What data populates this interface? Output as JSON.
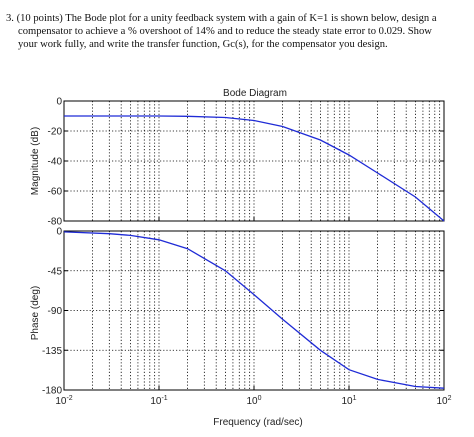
{
  "question": {
    "line1": "3. (10 points) The Bode plot for a unity feedback system with a gain of K=1 is shown below, design a",
    "line2": "compensator to achieve a % overshoot of 14% and to reduce the steady state error to 0.029.  Show",
    "line3": "your work fully, and write the transfer function, Gc(s), for the compensator you design."
  },
  "chart_data": [
    {
      "type": "line",
      "title": "Bode Diagram",
      "ylabel": "Magnitude (dB)",
      "xlabel": "",
      "xscale": "log",
      "xlim": [
        0.01,
        100
      ],
      "ylim": [
        -80,
        0
      ],
      "yticks": [
        0,
        -20,
        -40,
        -60,
        -80
      ],
      "grid": true,
      "series": [
        {
          "x": [
            0.01,
            0.05,
            0.1,
            0.2,
            0.5,
            1,
            2,
            5,
            10,
            20,
            50,
            100
          ],
          "y": [
            -10,
            -10,
            -10,
            -10.2,
            -11,
            -13,
            -17,
            -26,
            -36,
            -48,
            -64,
            -80
          ]
        }
      ]
    },
    {
      "type": "line",
      "title": "",
      "ylabel": "Phase (deg)",
      "xlabel": "Frequency  (rad/sec)",
      "xscale": "log",
      "xlim": [
        0.01,
        100
      ],
      "ylim": [
        -180,
        0
      ],
      "yticks": [
        0,
        -45,
        -90,
        -135,
        -180
      ],
      "xticks": [
        "10-2",
        "10-1",
        "100",
        "101",
        "102"
      ],
      "grid": true,
      "series": [
        {
          "x": [
            0.01,
            0.03,
            0.05,
            0.1,
            0.2,
            0.5,
            1,
            2,
            5,
            10,
            20,
            50,
            100
          ],
          "y": [
            -1,
            -3,
            -5,
            -10,
            -20,
            -45,
            -72,
            -100,
            -135,
            -157,
            -168,
            -176,
            -178
          ]
        }
      ]
    }
  ]
}
